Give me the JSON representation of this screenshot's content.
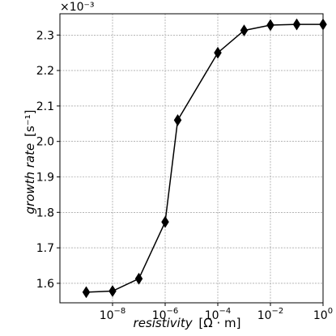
{
  "chart_data": {
    "type": "line",
    "x_scale": "log",
    "xlim": [
      1e-10,
      1
    ],
    "ylim": [
      1.545,
      2.36
    ],
    "x": [
      1e-09,
      1e-08,
      1e-07,
      1e-06,
      3e-06,
      0.0001,
      0.001,
      0.01,
      0.1,
      1
    ],
    "y": [
      1.575,
      1.578,
      1.613,
      1.773,
      2.06,
      2.25,
      2.313,
      2.328,
      2.33,
      2.33
    ],
    "y_offset_label": "×10⁻³",
    "x_ticks": [
      {
        "value": 1e-08,
        "base": "10",
        "exp": "−8"
      },
      {
        "value": 1e-06,
        "base": "10",
        "exp": "−6"
      },
      {
        "value": 0.0001,
        "base": "10",
        "exp": "−4"
      },
      {
        "value": 0.01,
        "base": "10",
        "exp": "−2"
      },
      {
        "value": 1,
        "base": "10",
        "exp": "0"
      }
    ],
    "y_ticks": [
      {
        "value": 1.6,
        "label": "1.6"
      },
      {
        "value": 1.7,
        "label": "1.7"
      },
      {
        "value": 1.8,
        "label": "1.8"
      },
      {
        "value": 1.9,
        "label": "1.9"
      },
      {
        "value": 2.0,
        "label": "2.0"
      },
      {
        "value": 2.1,
        "label": "2.1"
      },
      {
        "value": 2.2,
        "label": "2.2"
      },
      {
        "value": 2.3,
        "label": "2.3"
      }
    ],
    "xlabel": {
      "main": "resistivity",
      "unit": "[Ω · m]"
    },
    "ylabel": {
      "main": "growth rate",
      "unit": "[s⁻¹]"
    },
    "grid": true,
    "marker": "diamond",
    "line_color": "#000000",
    "grid_color": "#888888"
  }
}
